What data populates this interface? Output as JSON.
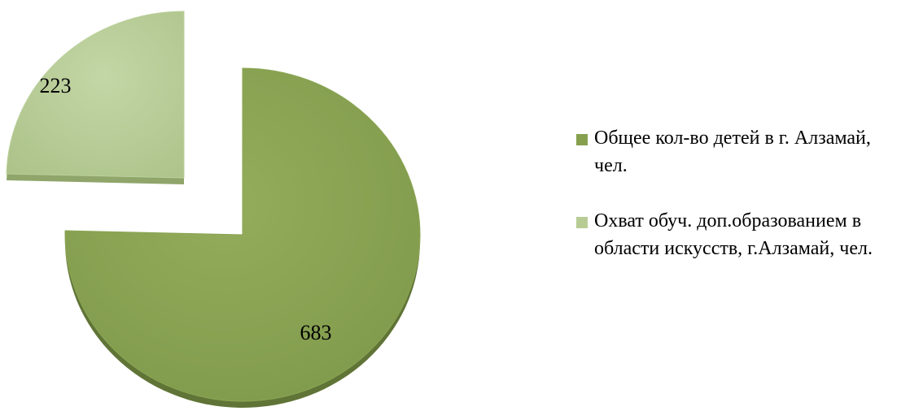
{
  "chart_data": {
    "type": "pie",
    "title": "",
    "legend_position": "right",
    "slices": [
      {
        "name": "Общее кол-во детей в г. Алзамай, чел.",
        "value": 683,
        "label": "683",
        "color": "#87a04e",
        "top_color": "#8aa553",
        "side_color": "#5f7436"
      },
      {
        "name": "Охват обуч. доп.образованием в области искусств, г.Алзамай, чел.",
        "value": 223,
        "label": "223",
        "color": "#b7cc95",
        "top_color": "#bad09a",
        "side_color": "#8fa56a"
      }
    ]
  }
}
